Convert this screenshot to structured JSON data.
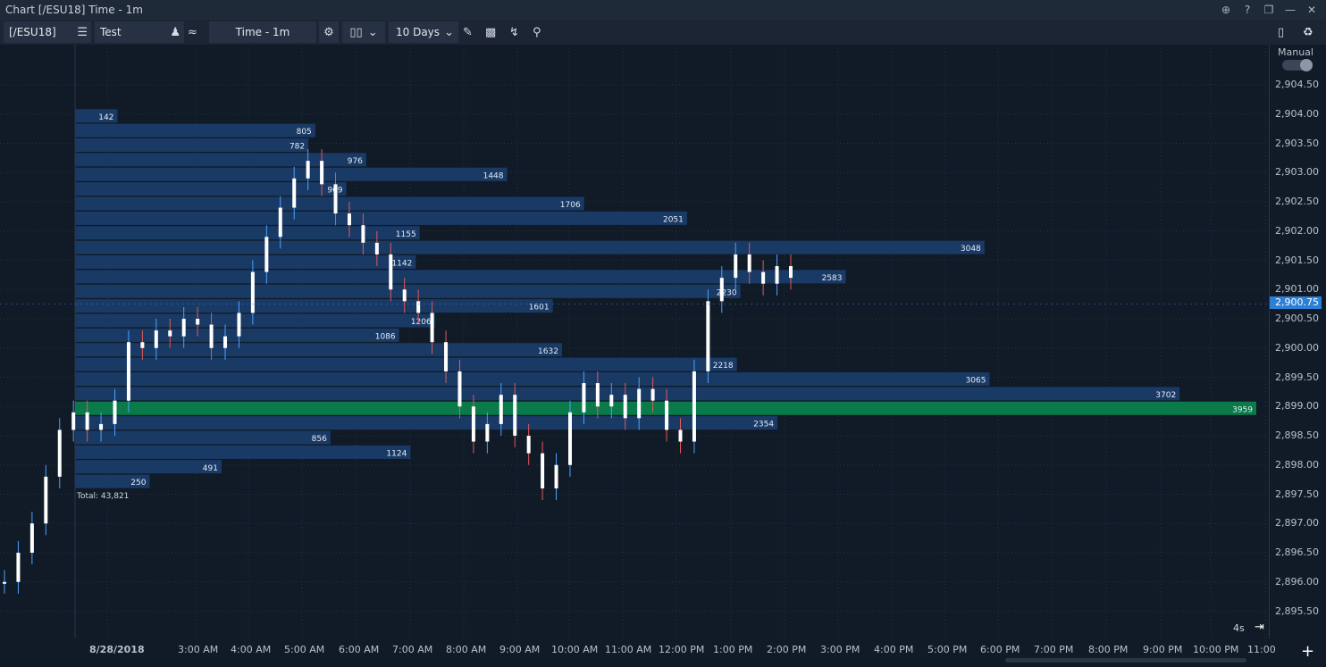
{
  "window": {
    "title": "Chart [/ESU18] Time - 1m"
  },
  "toolbar": {
    "symbol": "[/ESU18]",
    "account": "Test",
    "interval": "Time - 1m",
    "range": "10 Days"
  },
  "yaxis": {
    "mode_label": "Manual",
    "current_price": "2,900.75",
    "labels": [
      "2,904.50",
      "2,904.00",
      "2,903.50",
      "2,903.00",
      "2,902.50",
      "2,902.00",
      "2,901.50",
      "2,901.00",
      "2,900.50",
      "2,900.00",
      "2,899.50",
      "2,899.00",
      "2,898.50",
      "2,898.00",
      "2,897.50",
      "2,897.00",
      "2,896.50",
      "2,896.00",
      "2,895.50"
    ]
  },
  "xaxis": {
    "labels": [
      "8/28/2018",
      "3:00 AM",
      "4:00 AM",
      "5:00 AM",
      "6:00 AM",
      "7:00 AM",
      "8:00 AM",
      "9:00 AM",
      "10:00 AM",
      "11:00 AM",
      "12:00 PM",
      "1:00 PM",
      "2:00 PM",
      "3:00 PM",
      "4:00 PM",
      "5:00 PM",
      "6:00 PM",
      "7:00 PM",
      "8:00 PM",
      "9:00 PM",
      "10:00 PM",
      "11:00"
    ],
    "refresh": "4s"
  },
  "volume_profile": {
    "total_label": "Total: 43,821",
    "poc_color": "#0a7a4a",
    "bar_color": "#1a3a66",
    "levels": [
      {
        "price": 2904.0,
        "volume": 142
      },
      {
        "price": 2903.75,
        "volume": 805
      },
      {
        "price": 2903.5,
        "volume": 782
      },
      {
        "price": 2903.25,
        "volume": 976
      },
      {
        "price": 2903.0,
        "volume": 1448
      },
      {
        "price": 2902.75,
        "volume": 909
      },
      {
        "price": 2902.5,
        "volume": 1706
      },
      {
        "price": 2902.25,
        "volume": 2051
      },
      {
        "price": 2902.0,
        "volume": 1155
      },
      {
        "price": 2901.75,
        "volume": 3048
      },
      {
        "price": 2901.5,
        "volume": 1142
      },
      {
        "price": 2901.25,
        "volume": 2583
      },
      {
        "price": 2901.0,
        "volume": 2230
      },
      {
        "price": 2900.75,
        "volume": 1601
      },
      {
        "price": 2900.5,
        "volume": 1206
      },
      {
        "price": 2900.25,
        "volume": 1086
      },
      {
        "price": 2900.0,
        "volume": 1632
      },
      {
        "price": 2899.75,
        "volume": 2218
      },
      {
        "price": 2899.5,
        "volume": 3065
      },
      {
        "price": 2899.25,
        "volume": 3702
      },
      {
        "price": 2899.0,
        "volume": 3959
      },
      {
        "price": 2898.75,
        "volume": 2354
      },
      {
        "price": 2898.5,
        "volume": 856
      },
      {
        "price": 2898.25,
        "volume": 1124
      },
      {
        "price": 2898.0,
        "volume": 491
      },
      {
        "price": 2897.75,
        "volume": 250
      }
    ]
  },
  "chart_data": {
    "type": "candlestick",
    "title": "",
    "ylim": [
      2895.25,
      2904.75
    ],
    "series": [
      {
        "name": "",
        "values": [
          2896.0,
          2896.5,
          2897.0,
          2897.8,
          2898.6,
          2898.9,
          2898.6,
          2898.7,
          2899.1,
          2900.1,
          2900.0,
          2900.3,
          2900.2,
          2900.5,
          2900.4,
          2900.0,
          2900.2,
          2900.6,
          2901.3,
          2901.9,
          2902.4,
          2902.9,
          2903.2,
          2902.8,
          2902.3,
          2902.1,
          2901.8,
          2901.6,
          2901.0,
          2900.8,
          2900.6,
          2900.1,
          2899.6,
          2899.0,
          2898.4,
          2898.7,
          2899.2,
          2898.5,
          2898.2,
          2897.6,
          2898.0,
          2898.9,
          2899.4,
          2899.0,
          2899.2,
          2898.8,
          2899.3,
          2899.1,
          2898.6,
          2898.4,
          2899.6,
          2900.8,
          2901.2,
          2901.6,
          2901.3,
          2901.1,
          2901.4,
          2901.2
        ]
      }
    ]
  }
}
